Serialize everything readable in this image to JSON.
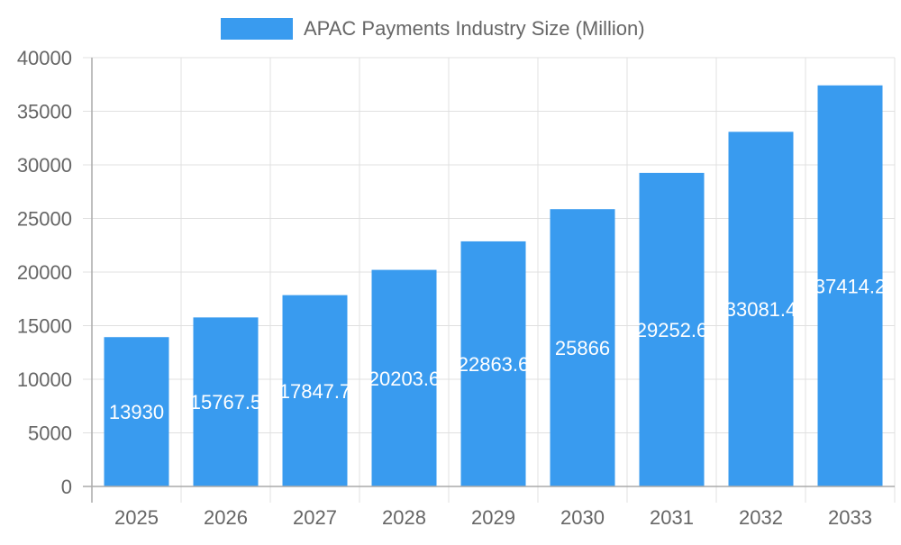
{
  "chart_data": {
    "type": "bar",
    "title": "",
    "xlabel": "",
    "ylabel": "",
    "legend": {
      "position": "top",
      "entries": [
        "APAC Payments Industry Size (Million)"
      ]
    },
    "categories": [
      "2025",
      "2026",
      "2027",
      "2028",
      "2029",
      "2030",
      "2031",
      "2032",
      "2033"
    ],
    "series": [
      {
        "name": "APAC Payments Industry Size (Million)",
        "values": [
          13930,
          15767.5,
          17847.7,
          20203.6,
          22863.6,
          25866,
          29252.6,
          33081.4,
          37414.2
        ],
        "labels": [
          "13930",
          "15767.5",
          "17847.7",
          "20203.6",
          "22863.6",
          "25866",
          "29252.6",
          "33081.4",
          "37414.2"
        ]
      }
    ],
    "ylim": [
      0,
      40000
    ],
    "yticks": [
      "0",
      "5000",
      "10000",
      "15000",
      "20000",
      "25000",
      "30000",
      "35000",
      "40000"
    ],
    "grid": true,
    "colors": {
      "bar": "#399BEF",
      "grid": "#e0e0e0",
      "axis": "#aaaaaa",
      "tick_text": "#666666",
      "data_label": "#ffffff"
    }
  }
}
